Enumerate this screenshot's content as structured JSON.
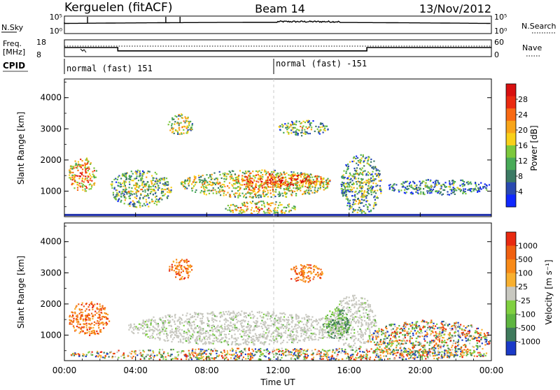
{
  "header": {
    "station": "Kerguelen (fitACF)",
    "beam": "Beam 14",
    "date": "13/Nov/2012"
  },
  "top_panels": {
    "nsky_label": "N.Sky",
    "nsky_ticks": [
      "10^5",
      "10^0"
    ],
    "nsearch_label": "N.Search",
    "nsearch_ticks": [
      "10^5",
      "10^0"
    ],
    "freq_label": "Freq.",
    "freq_unit": "[MHz]",
    "freq_ticks": [
      "18",
      "8"
    ],
    "nave_label": "Nave",
    "nave_ticks": [
      "60",
      "0"
    ],
    "cpid_label": "CPID",
    "cpid_segments": [
      "normal (fast) 151",
      "normal (fast) -151"
    ],
    "frequency_profile": {
      "hours": [
        0,
        0.1,
        3.0,
        3.0,
        17.0,
        17.0,
        24
      ],
      "values": [
        13.4,
        13.4,
        13.4,
        11.4,
        11.4,
        13.4,
        13.4
      ]
    }
  },
  "chart_data": [
    {
      "type": "heatmap",
      "title": "",
      "xlabel": "",
      "ylabel": "Slant Range [km]",
      "xlim": [
        0,
        24
      ],
      "ylim": [
        180,
        4600
      ],
      "yticks": [
        "1000",
        "2000",
        "3000",
        "4000"
      ],
      "colorbar": {
        "label": "Power [dB]",
        "ticks": [
          "4",
          "8",
          "12",
          "16",
          "20",
          "24",
          "28"
        ],
        "colors": [
          "#1028ff",
          "#2a4ab0",
          "#3c7a64",
          "#48aa58",
          "#7cc83c",
          "#f8d01a",
          "#f8a51a",
          "#f86a14",
          "#ea2a10",
          "#d81010"
        ]
      },
      "blobs": [
        {
          "hours": [
            0.2,
            1.8
          ],
          "range": [
            1000,
            2100
          ],
          "intensity": 0.8
        },
        {
          "hours": [
            2.5,
            6.0
          ],
          "range": [
            500,
            1700
          ],
          "intensity": 0.5
        },
        {
          "hours": [
            6.5,
            15.0
          ],
          "range": [
            800,
            1700
          ],
          "intensity": 0.65
        },
        {
          "hours": [
            9.5,
            15.0
          ],
          "range": [
            1100,
            1600
          ],
          "intensity": 0.95
        },
        {
          "hours": [
            5.8,
            7.2
          ],
          "range": [
            2800,
            3500
          ],
          "intensity": 0.6
        },
        {
          "hours": [
            12.0,
            14.8
          ],
          "range": [
            2800,
            3300
          ],
          "intensity": 0.5
        },
        {
          "hours": [
            15.5,
            17.8
          ],
          "range": [
            250,
            2200
          ],
          "intensity": 0.45
        },
        {
          "hours": [
            18.0,
            24.0
          ],
          "range": [
            900,
            1400
          ],
          "intensity": 0.35
        },
        {
          "hours": [
            9.0,
            13.0
          ],
          "range": [
            250,
            700
          ],
          "intensity": 0.7
        }
      ]
    },
    {
      "type": "heatmap",
      "title": "",
      "xlabel": "Time UT",
      "ylabel": "Slant Range [km]",
      "xlim": [
        0,
        24
      ],
      "ylim": [
        180,
        4600
      ],
      "xticks": [
        "00:00",
        "04:00",
        "08:00",
        "12:00",
        "16:00",
        "20:00",
        "00:00"
      ],
      "yticks": [
        "1000",
        "2000",
        "3000",
        "4000"
      ],
      "colorbar": {
        "label": "Velocity [m s^-1]",
        "ticks": [
          "1000",
          "500",
          "100",
          "25",
          "-25",
          "-100",
          "-500",
          "-1000"
        ],
        "colors": [
          "#1a3ac8",
          "#3f7a5c",
          "#5eb540",
          "#80d040",
          "#c8c8c0",
          "#f8b030",
          "#f88a18",
          "#f06010",
          "#e82a10"
        ]
      },
      "blobs": [
        {
          "hours": [
            0.2,
            2.5
          ],
          "range": [
            1000,
            2100
          ],
          "kind": "neg"
        },
        {
          "hours": [
            3.5,
            16.0
          ],
          "range": [
            700,
            1800
          ],
          "kind": "zero"
        },
        {
          "hours": [
            15.0,
            17.5
          ],
          "range": [
            600,
            2300
          ],
          "kind": "zero"
        },
        {
          "hours": [
            14.5,
            16.0
          ],
          "range": [
            900,
            1900
          ],
          "kind": "pos"
        },
        {
          "hours": [
            5.8,
            7.2
          ],
          "range": [
            2800,
            3500
          ],
          "kind": "neg"
        },
        {
          "hours": [
            12.5,
            14.5
          ],
          "range": [
            2700,
            3300
          ],
          "kind": "neg"
        },
        {
          "hours": [
            17.0,
            24.0
          ],
          "range": [
            300,
            1500
          ],
          "kind": "mix"
        },
        {
          "hours": [
            0.2,
            24.0
          ],
          "range": [
            200,
            600
          ],
          "kind": "mix"
        }
      ]
    }
  ]
}
